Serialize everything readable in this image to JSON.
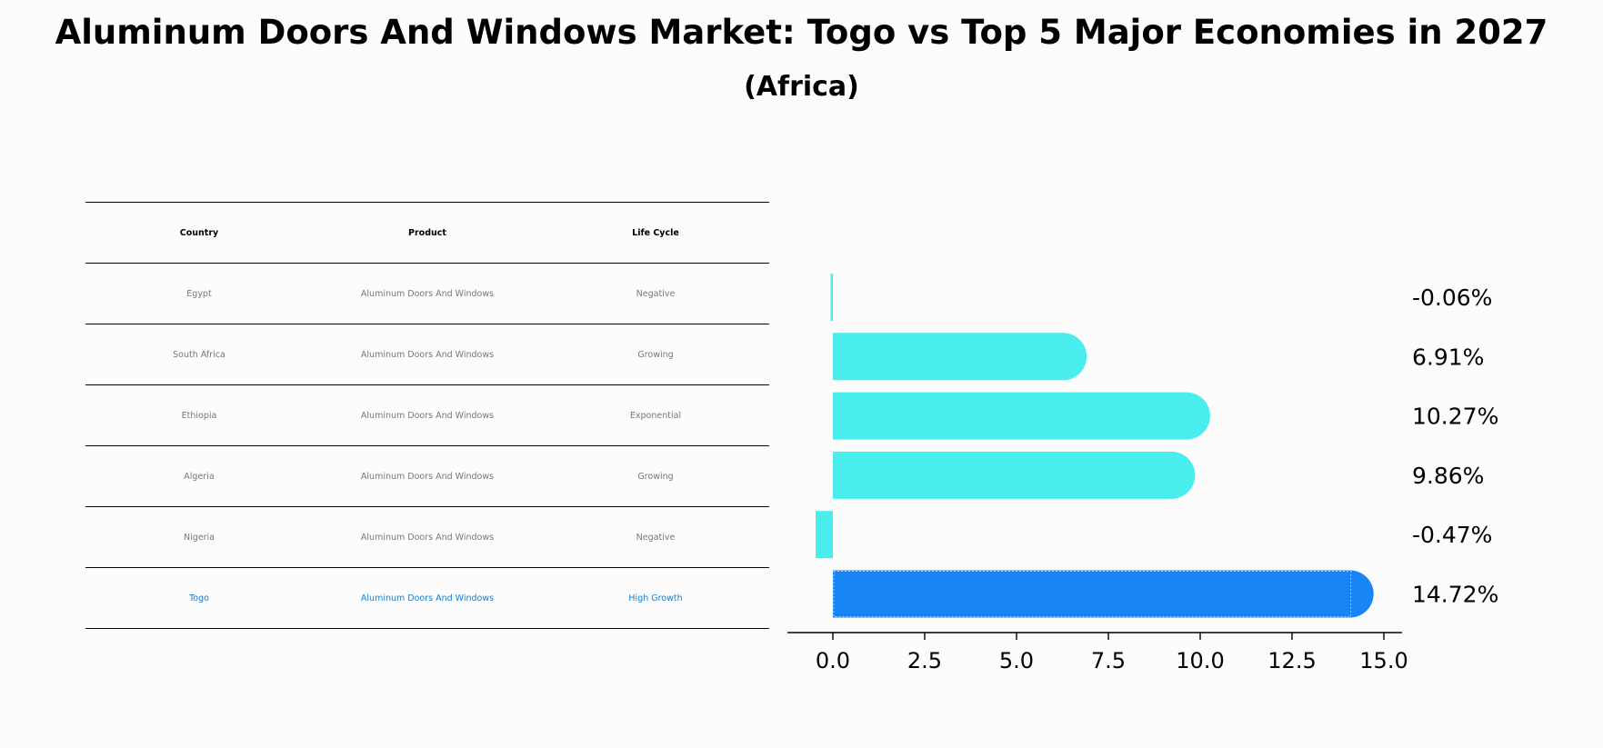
{
  "title": "Aluminum Doors And Windows Market: Togo vs Top 5 Major Economies in 2027",
  "subtitle": "(Africa)",
  "table": {
    "headers": [
      "Country",
      "Product",
      "Life Cycle"
    ],
    "rows": [
      [
        "Egypt",
        "Aluminum Doors And Windows",
        "Negative"
      ],
      [
        "South Africa",
        "Aluminum Doors And Windows",
        "Growing"
      ],
      [
        "Ethiopia",
        "Aluminum Doors And Windows",
        "Exponential"
      ],
      [
        "Algeria",
        "Aluminum Doors And Windows",
        "Growing"
      ],
      [
        "Nigeria",
        "Aluminum Doors And Windows",
        "Negative"
      ],
      [
        "Togo",
        "Aluminum Doors And Windows",
        "High Growth"
      ]
    ],
    "highlight_row": 5
  },
  "chart_data": {
    "type": "bar",
    "orientation": "horizontal",
    "categories": [
      "Egypt",
      "South Africa",
      "Ethiopia",
      "Algeria",
      "Nigeria",
      "Togo"
    ],
    "values": [
      -0.06,
      6.91,
      10.27,
      9.86,
      -0.47,
      14.72
    ],
    "value_labels": [
      "-0.06%",
      "6.91%",
      "10.27%",
      "9.86%",
      "-0.47%",
      "14.72%"
    ],
    "highlight_index": 5,
    "xlim": [
      -1.25,
      15.5
    ],
    "xticks": [
      0.0,
      2.5,
      5.0,
      7.5,
      10.0,
      12.5,
      15.0
    ],
    "xtick_labels": [
      "0.0",
      "2.5",
      "5.0",
      "7.5",
      "10.0",
      "12.5",
      "15.0"
    ],
    "colors": {
      "default": "#4aeded",
      "highlight": "#1984f5"
    },
    "grid": false
  }
}
